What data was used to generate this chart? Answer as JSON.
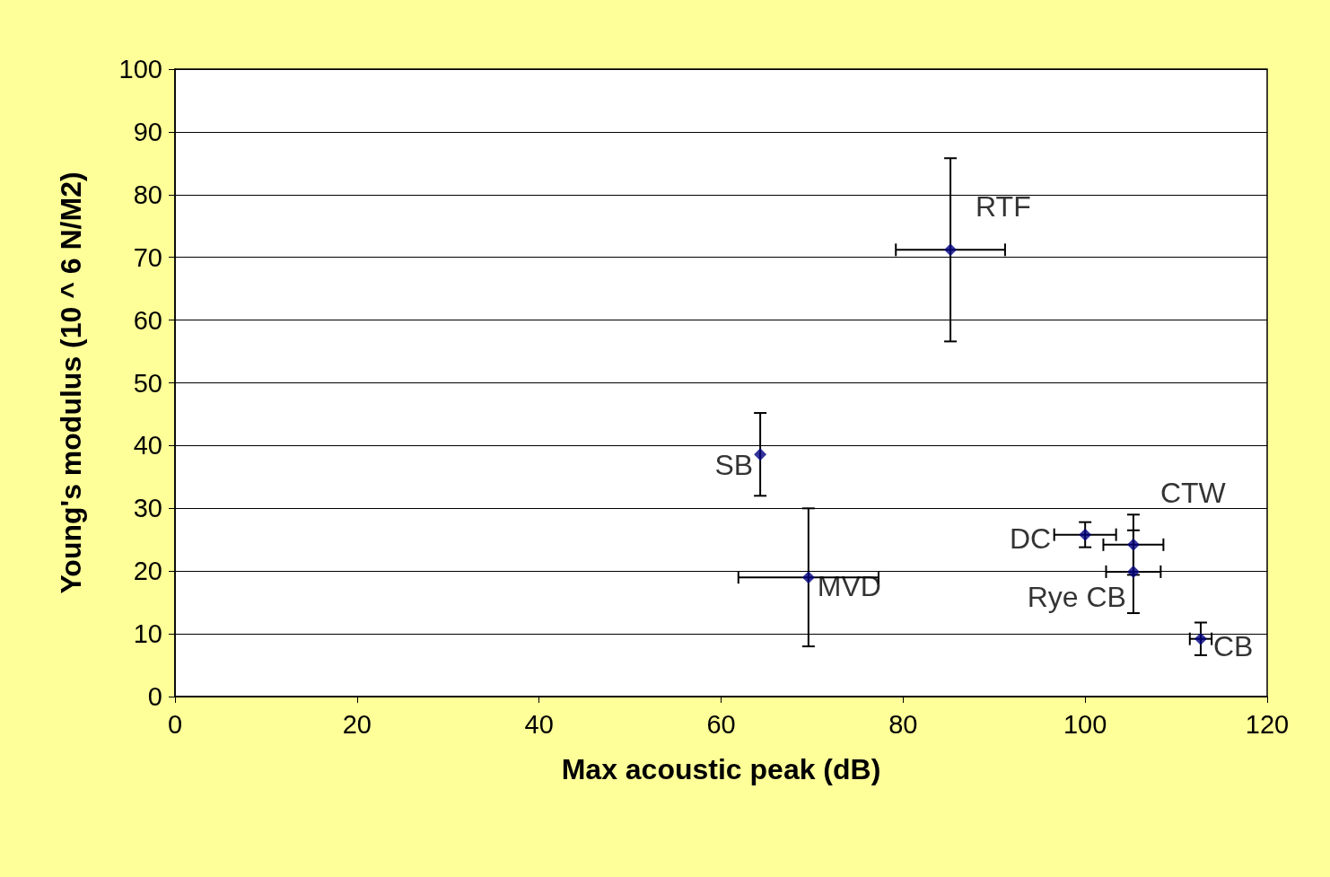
{
  "chart_data": {
    "type": "scatter",
    "xlabel": "Max acoustic peak (dB)",
    "ylabel": "Young's modulus (10 ^ 6 N/M2)",
    "xlim": [
      0,
      120
    ],
    "xticks": [
      0,
      20,
      40,
      60,
      80,
      100,
      120
    ],
    "ylim": [
      0,
      100
    ],
    "yticks": [
      0,
      10,
      20,
      30,
      40,
      50,
      60,
      70,
      80,
      90,
      100
    ],
    "grid": "y",
    "legend": false,
    "marker": "diamond",
    "series": [
      {
        "name": "RTF",
        "color": "#000080",
        "x": [
          85.2
        ],
        "values": [
          71.2
        ],
        "xerrors": [
          6
        ],
        "errors": [
          14.6
        ]
      },
      {
        "name": "SB",
        "color": "#000080",
        "x": [
          64.3
        ],
        "values": [
          38.6
        ],
        "errors": [
          6.6
        ]
      },
      {
        "name": "MVD",
        "color": "#000080",
        "x": [
          69.6
        ],
        "values": [
          19
        ],
        "xerrors": [
          7.7
        ],
        "errors": [
          11
        ]
      },
      {
        "name": "DC",
        "color": "#000080",
        "x": [
          100
        ],
        "values": [
          25.8
        ],
        "xerrors": [
          3.4
        ],
        "errors": [
          2
        ]
      },
      {
        "name": "CTW",
        "color": "#000080",
        "x": [
          105.3
        ],
        "values": [
          24.2
        ],
        "xerrors": [
          3.3
        ],
        "errors": [
          4.8
        ]
      },
      {
        "name": "Rye CB",
        "color": "#000080",
        "x": [
          105.3
        ],
        "values": [
          19.9
        ],
        "xerrors": [
          3
        ],
        "errors": [
          6.6
        ]
      },
      {
        "name": "CB",
        "color": "#000080",
        "x": [
          112.7
        ],
        "values": [
          9.2
        ],
        "xerrors": [
          1.2
        ],
        "errors": [
          2.6
        ]
      }
    ]
  }
}
